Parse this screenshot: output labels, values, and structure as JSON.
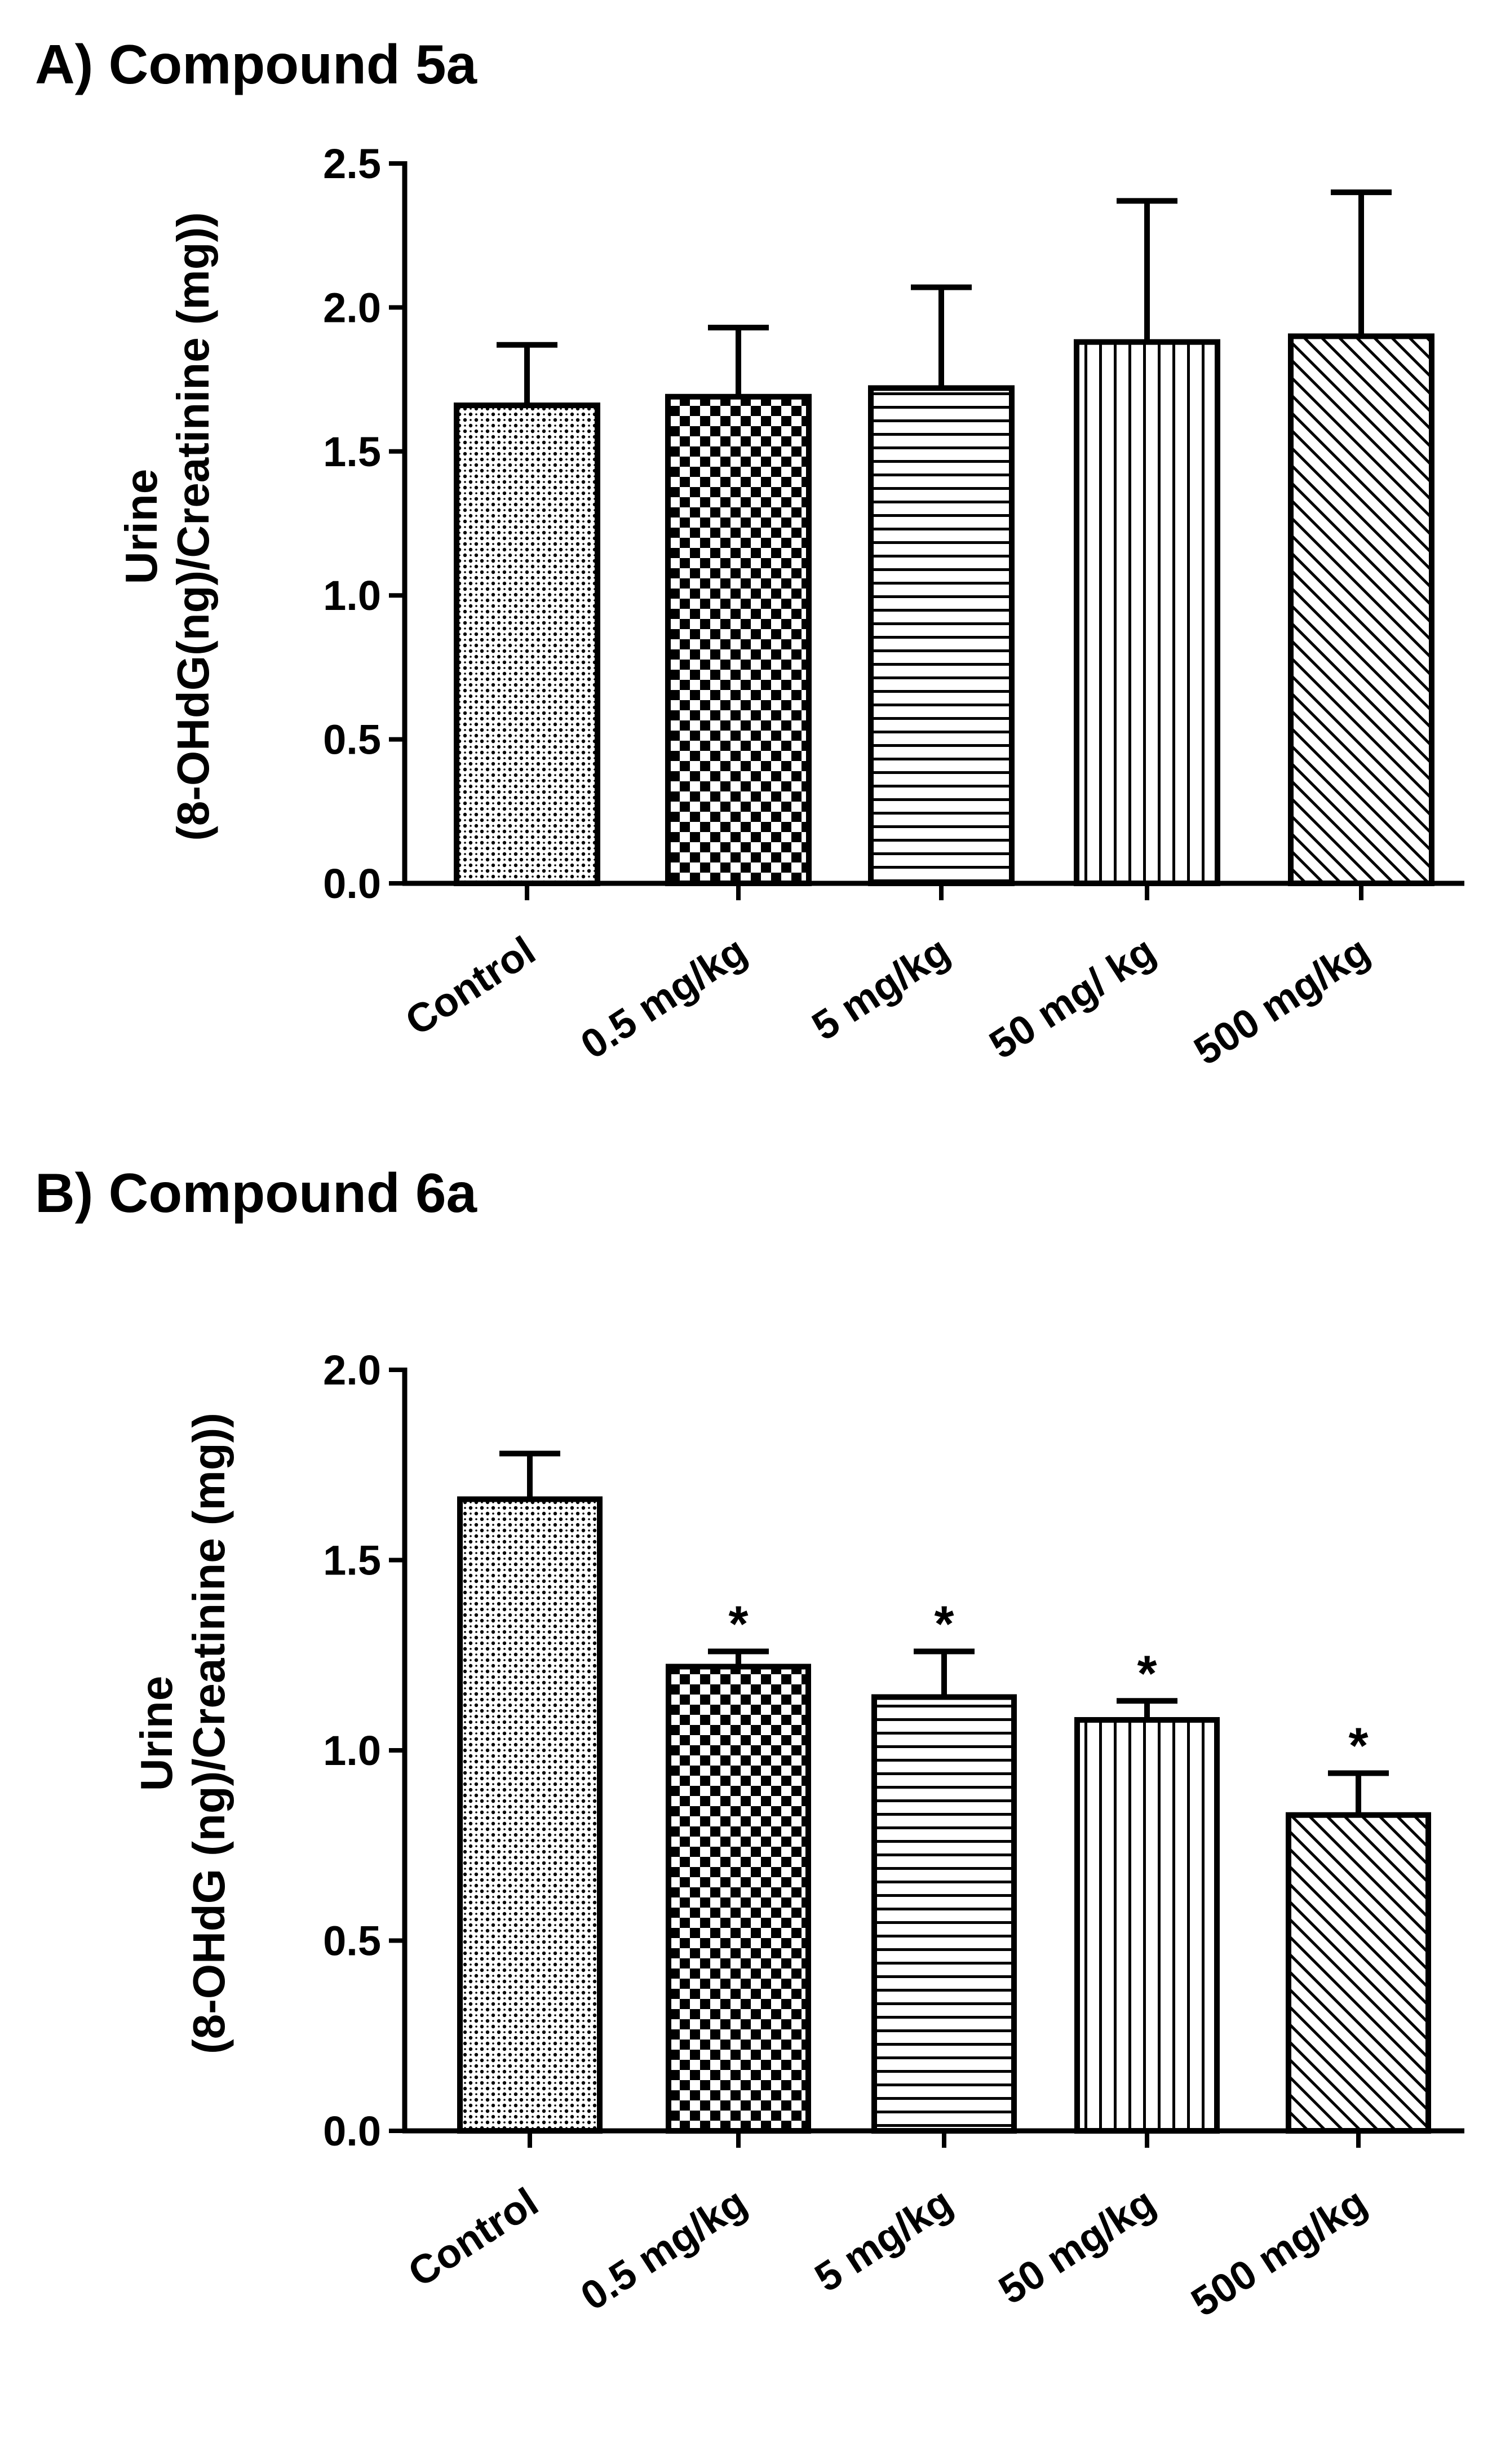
{
  "chart_data": [
    {
      "type": "bar",
      "title": "A) Compound 5a",
      "ylabel_lines": [
        "Urine",
        "(8-OHdG(ng)/Creatinine (mg))"
      ],
      "xlabel": "",
      "categories": [
        "Control",
        "0.5 mg/kg",
        "5 mg/kg",
        "50 mg/ kg",
        "500 mg/kg"
      ],
      "values": [
        1.66,
        1.69,
        1.72,
        1.88,
        1.9
      ],
      "errors": [
        0.21,
        0.24,
        0.35,
        0.49,
        0.5
      ],
      "significance": [
        "",
        "",
        "",
        "",
        ""
      ],
      "patterns": [
        "dots",
        "checker",
        "hlines",
        "vlines",
        "diagonal"
      ],
      "ylim": [
        0,
        2.5
      ],
      "yticks": [
        0.0,
        0.5,
        1.0,
        1.5,
        2.0,
        2.5
      ],
      "ytick_labels": [
        "0.0",
        "0.5",
        "1.0",
        "1.5",
        "2.0",
        "2.5"
      ],
      "grid": false,
      "legend": "none"
    },
    {
      "type": "bar",
      "title": "B) Compound 6a",
      "ylabel_lines": [
        "Urine",
        "(8-OHdG (ng)/Creatinine (mg))"
      ],
      "xlabel": "",
      "categories": [
        "Control",
        "0.5 mg/kg",
        "5 mg/kg",
        "50 mg/kg",
        "500 mg/kg"
      ],
      "values": [
        1.66,
        1.22,
        1.14,
        1.08,
        0.83
      ],
      "errors": [
        0.12,
        0.04,
        0.12,
        0.05,
        0.11
      ],
      "significance": [
        "",
        "*",
        "*",
        "*",
        "*"
      ],
      "patterns": [
        "dots",
        "checker",
        "hlines",
        "vlines",
        "diagonal"
      ],
      "ylim": [
        0,
        2.0
      ],
      "yticks": [
        0.0,
        0.5,
        1.0,
        1.5,
        2.0
      ],
      "ytick_labels": [
        "0.0",
        "0.5",
        "1.0",
        "1.5",
        "2.0"
      ],
      "grid": false,
      "legend": "none"
    }
  ]
}
